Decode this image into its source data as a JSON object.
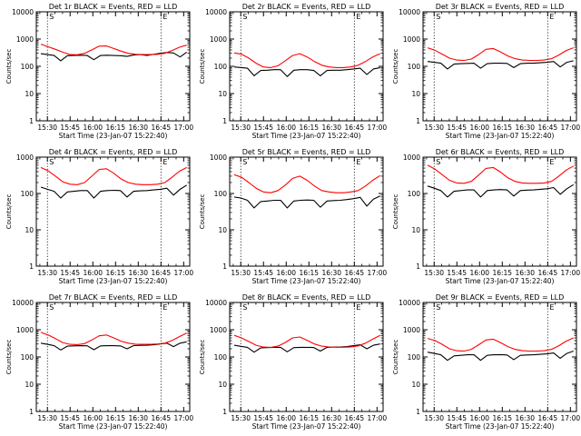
{
  "chart_data": [
    {
      "type": "line",
      "title": "Det 1r BLACK = Events, RED = LLD",
      "xlabel": "Start Time (23-Jan-07 15:22:40)",
      "ylabel": "Counts/sec",
      "yscale": "log",
      "ylim": [
        1,
        10000
      ],
      "x_ticks": [
        "15:30",
        "15:45",
        "16:00",
        "16:15",
        "16:30",
        "16:45",
        "17:00"
      ],
      "y_ticks": [
        "1",
        "10",
        "100",
        "1000",
        "10000"
      ],
      "markers": [
        {
          "label": "S",
          "time": "15:30"
        },
        {
          "label": "E",
          "time": "16:45"
        }
      ],
      "series": [
        {
          "name": "Events",
          "color": "#000000",
          "values": [
            290,
            270,
            250,
            160,
            245,
            250,
            255,
            250,
            175,
            250,
            255,
            250,
            245,
            230,
            260,
            270,
            250,
            275,
            300,
            320,
            310,
            220,
            330
          ]
        },
        {
          "name": "LLD",
          "color": "#ff0000",
          "values": [
            650,
            520,
            420,
            330,
            270,
            265,
            300,
            400,
            550,
            560,
            450,
            360,
            300,
            275,
            270,
            270,
            275,
            300,
            380,
            500,
            600
          ]
        }
      ]
    },
    {
      "type": "line",
      "title": "Det 2r BLACK = Events, RED = LLD",
      "xlabel": "Start Time (23-Jan-07 15:22:40)",
      "ylabel": "Counts/sec",
      "yscale": "log",
      "ylim": [
        1,
        10000
      ],
      "x_ticks": [
        "15:30",
        "15:45",
        "16:00",
        "16:15",
        "16:30",
        "16:45",
        "17:00"
      ],
      "y_ticks": [
        "1",
        "10",
        "100",
        "1000",
        "10000"
      ],
      "markers": [
        {
          "label": "S",
          "time": "15:30"
        },
        {
          "label": "E",
          "time": "16:45"
        }
      ],
      "series": [
        {
          "name": "Events",
          "color": "#000000",
          "values": [
            95,
            90,
            85,
            45,
            70,
            72,
            75,
            75,
            42,
            72,
            75,
            75,
            70,
            45,
            70,
            72,
            72,
            75,
            80,
            85,
            50,
            80,
            90
          ]
        },
        {
          "name": "LLD",
          "color": "#ff0000",
          "values": [
            310,
            280,
            200,
            130,
            95,
            90,
            105,
            160,
            250,
            290,
            220,
            150,
            110,
            95,
            90,
            90,
            95,
            110,
            150,
            220,
            290
          ]
        }
      ]
    },
    {
      "type": "line",
      "title": "Det 3r BLACK = Events, RED = LLD",
      "xlabel": "Start Time (23-Jan-07 15:22:40)",
      "ylabel": "Counts/sec",
      "yscale": "log",
      "ylim": [
        1,
        10000
      ],
      "x_ticks": [
        "15:30",
        "15:45",
        "16:00",
        "16:15",
        "16:30",
        "16:45",
        "17:00"
      ],
      "y_ticks": [
        "1",
        "10",
        "100",
        "1000",
        "10000"
      ],
      "markers": [
        {
          "label": "S",
          "time": "15:30"
        },
        {
          "label": "E",
          "time": "16:45"
        }
      ],
      "series": [
        {
          "name": "Events",
          "color": "#000000",
          "values": [
            150,
            140,
            130,
            80,
            120,
            125,
            128,
            130,
            85,
            125,
            130,
            130,
            128,
            90,
            125,
            130,
            130,
            135,
            140,
            150,
            95,
            140,
            160
          ]
        },
        {
          "name": "LLD",
          "color": "#ff0000",
          "values": [
            480,
            390,
            280,
            200,
            170,
            165,
            185,
            270,
            420,
            450,
            340,
            240,
            190,
            170,
            165,
            165,
            170,
            190,
            260,
            380,
            480
          ]
        }
      ]
    },
    {
      "type": "line",
      "title": "Det 4r BLACK = Events, RED = LLD",
      "xlabel": "Start Time (23-Jan-07 15:22:40)",
      "ylabel": "Counts/sec",
      "yscale": "log",
      "ylim": [
        1,
        1000
      ],
      "x_ticks": [
        "15:30",
        "15:45",
        "16:00",
        "16:15",
        "16:30",
        "16:45",
        "17:00"
      ],
      "y_ticks": [
        "1",
        "10",
        "100",
        "1000"
      ],
      "markers": [
        {
          "label": "S",
          "time": "15:30"
        },
        {
          "label": "E",
          "time": "16:45"
        }
      ],
      "series": [
        {
          "name": "Events",
          "color": "#000000",
          "values": [
            150,
            130,
            115,
            75,
            110,
            115,
            120,
            120,
            75,
            115,
            120,
            122,
            120,
            80,
            115,
            118,
            120,
            125,
            130,
            140,
            90,
            130,
            170
          ]
        },
        {
          "name": "LLD",
          "color": "#ff0000",
          "values": [
            520,
            420,
            300,
            210,
            180,
            175,
            200,
            300,
            460,
            480,
            360,
            250,
            200,
            180,
            175,
            175,
            180,
            200,
            280,
            410,
            520
          ]
        }
      ]
    },
    {
      "type": "line",
      "title": "Det 5r BLACK = Events, RED = LLD",
      "xlabel": "Start Time (23-Jan-07 15:22:40)",
      "ylabel": "Counts/sec",
      "yscale": "log",
      "ylim": [
        1,
        1000
      ],
      "x_ticks": [
        "15:30",
        "15:45",
        "16:00",
        "16:15",
        "16:30",
        "16:45",
        "17:00"
      ],
      "y_ticks": [
        "1",
        "10",
        "100",
        "1000"
      ],
      "markers": [
        {
          "label": "S",
          "time": "15:30"
        },
        {
          "label": "E",
          "time": "16:45"
        }
      ],
      "series": [
        {
          "name": "Events",
          "color": "#000000",
          "values": [
            80,
            75,
            65,
            40,
            60,
            62,
            65,
            65,
            40,
            62,
            65,
            66,
            65,
            42,
            62,
            64,
            65,
            68,
            72,
            78,
            45,
            70,
            85
          ]
        },
        {
          "name": "LLD",
          "color": "#ff0000",
          "values": [
            330,
            280,
            200,
            140,
            110,
            105,
            120,
            170,
            260,
            300,
            230,
            160,
            120,
            110,
            105,
            105,
            110,
            120,
            160,
            230,
            310
          ]
        }
      ]
    },
    {
      "type": "line",
      "title": "Det 6r BLACK = Events, RED = LLD",
      "xlabel": "Start Time (23-Jan-07 15:22:40)",
      "ylabel": "Counts/sec",
      "yscale": "log",
      "ylim": [
        1,
        1000
      ],
      "x_ticks": [
        "15:30",
        "15:45",
        "16:00",
        "16:15",
        "16:30",
        "16:45",
        "17:00"
      ],
      "y_ticks": [
        "1",
        "10",
        "100",
        "1000"
      ],
      "markers": [
        {
          "label": "S",
          "time": "15:30"
        },
        {
          "label": "E",
          "time": "16:45"
        }
      ],
      "series": [
        {
          "name": "Events",
          "color": "#000000",
          "values": [
            160,
            140,
            120,
            80,
            115,
            120,
            125,
            125,
            80,
            120,
            125,
            128,
            125,
            85,
            120,
            124,
            125,
            130,
            135,
            145,
            95,
            135,
            175
          ]
        },
        {
          "name": "LLD",
          "color": "#ff0000",
          "values": [
            600,
            470,
            330,
            230,
            195,
            190,
            215,
            320,
            490,
            520,
            390,
            270,
            215,
            195,
            190,
            190,
            195,
            215,
            300,
            440,
            570
          ]
        }
      ]
    },
    {
      "type": "line",
      "title": "Det 7r BLACK = Events, RED = LLD",
      "xlabel": "Start Time (23-Jan-07 15:22:40)",
      "ylabel": "Counts/sec",
      "yscale": "log",
      "ylim": [
        1,
        10000
      ],
      "x_ticks": [
        "15:30",
        "15:45",
        "16:00",
        "16:15",
        "16:30",
        "16:45",
        "17:00"
      ],
      "y_ticks": [
        "1",
        "10",
        "100",
        "1000",
        "10000"
      ],
      "markers": [
        {
          "label": "S",
          "time": "15:30"
        },
        {
          "label": "E",
          "time": "16:45"
        }
      ],
      "series": [
        {
          "name": "Events",
          "color": "#000000",
          "values": [
            320,
            290,
            260,
            180,
            250,
            255,
            260,
            258,
            185,
            255,
            260,
            260,
            255,
            200,
            262,
            268,
            270,
            280,
            300,
            320,
            240,
            320,
            360
          ]
        },
        {
          "name": "LLD",
          "color": "#ff0000",
          "values": [
            800,
            640,
            470,
            340,
            290,
            285,
            310,
            420,
            600,
            640,
            500,
            380,
            320,
            295,
            290,
            290,
            300,
            320,
            400,
            560,
            760
          ]
        }
      ]
    },
    {
      "type": "line",
      "title": "Det 8r BLACK = Events, RED = LLD",
      "xlabel": "Start Time (23-Jan-07 15:22:40)",
      "ylabel": "Counts/sec",
      "yscale": "log",
      "ylim": [
        1,
        10000
      ],
      "x_ticks": [
        "15:30",
        "15:45",
        "16:00",
        "16:15",
        "16:30",
        "16:45",
        "17:00"
      ],
      "y_ticks": [
        "1",
        "10",
        "100",
        "1000",
        "10000"
      ],
      "markers": [
        {
          "label": "S",
          "time": "15:30"
        },
        {
          "label": "E",
          "time": "16:45"
        }
      ],
      "series": [
        {
          "name": "Events",
          "color": "#000000",
          "values": [
            270,
            245,
            225,
            150,
            215,
            220,
            225,
            225,
            155,
            220,
            225,
            226,
            222,
            165,
            225,
            230,
            232,
            240,
            260,
            280,
            200,
            270,
            300
          ]
        },
        {
          "name": "LLD",
          "color": "#ff0000",
          "values": [
            620,
            500,
            370,
            270,
            230,
            225,
            250,
            340,
            500,
            540,
            410,
            300,
            250,
            232,
            228,
            228,
            235,
            255,
            320,
            450,
            620
          ]
        }
      ]
    },
    {
      "type": "line",
      "title": "Det 9r BLACK = Events, RED = LLD",
      "xlabel": "Start Time (23-Jan-07 15:22:40)",
      "ylabel": "Counts/sec",
      "yscale": "log",
      "ylim": [
        1,
        10000
      ],
      "x_ticks": [
        "15:30",
        "15:45",
        "16:00",
        "16:15",
        "16:30",
        "16:45",
        "17:00"
      ],
      "y_ticks": [
        "1",
        "10",
        "100",
        "1000",
        "10000"
      ],
      "markers": [
        {
          "label": "S",
          "time": "15:30"
        },
        {
          "label": "E",
          "time": "16:45"
        }
      ],
      "series": [
        {
          "name": "Events",
          "color": "#000000",
          "values": [
            150,
            135,
            120,
            75,
            110,
            115,
            120,
            120,
            75,
            115,
            120,
            122,
            118,
            80,
            115,
            118,
            120,
            125,
            130,
            140,
            90,
            135,
            165
          ]
        },
        {
          "name": "LLD",
          "color": "#ff0000",
          "values": [
            480,
            400,
            290,
            200,
            170,
            165,
            190,
            280,
            420,
            450,
            340,
            240,
            190,
            170,
            165,
            165,
            170,
            190,
            260,
            380,
            500
          ]
        }
      ]
    }
  ]
}
